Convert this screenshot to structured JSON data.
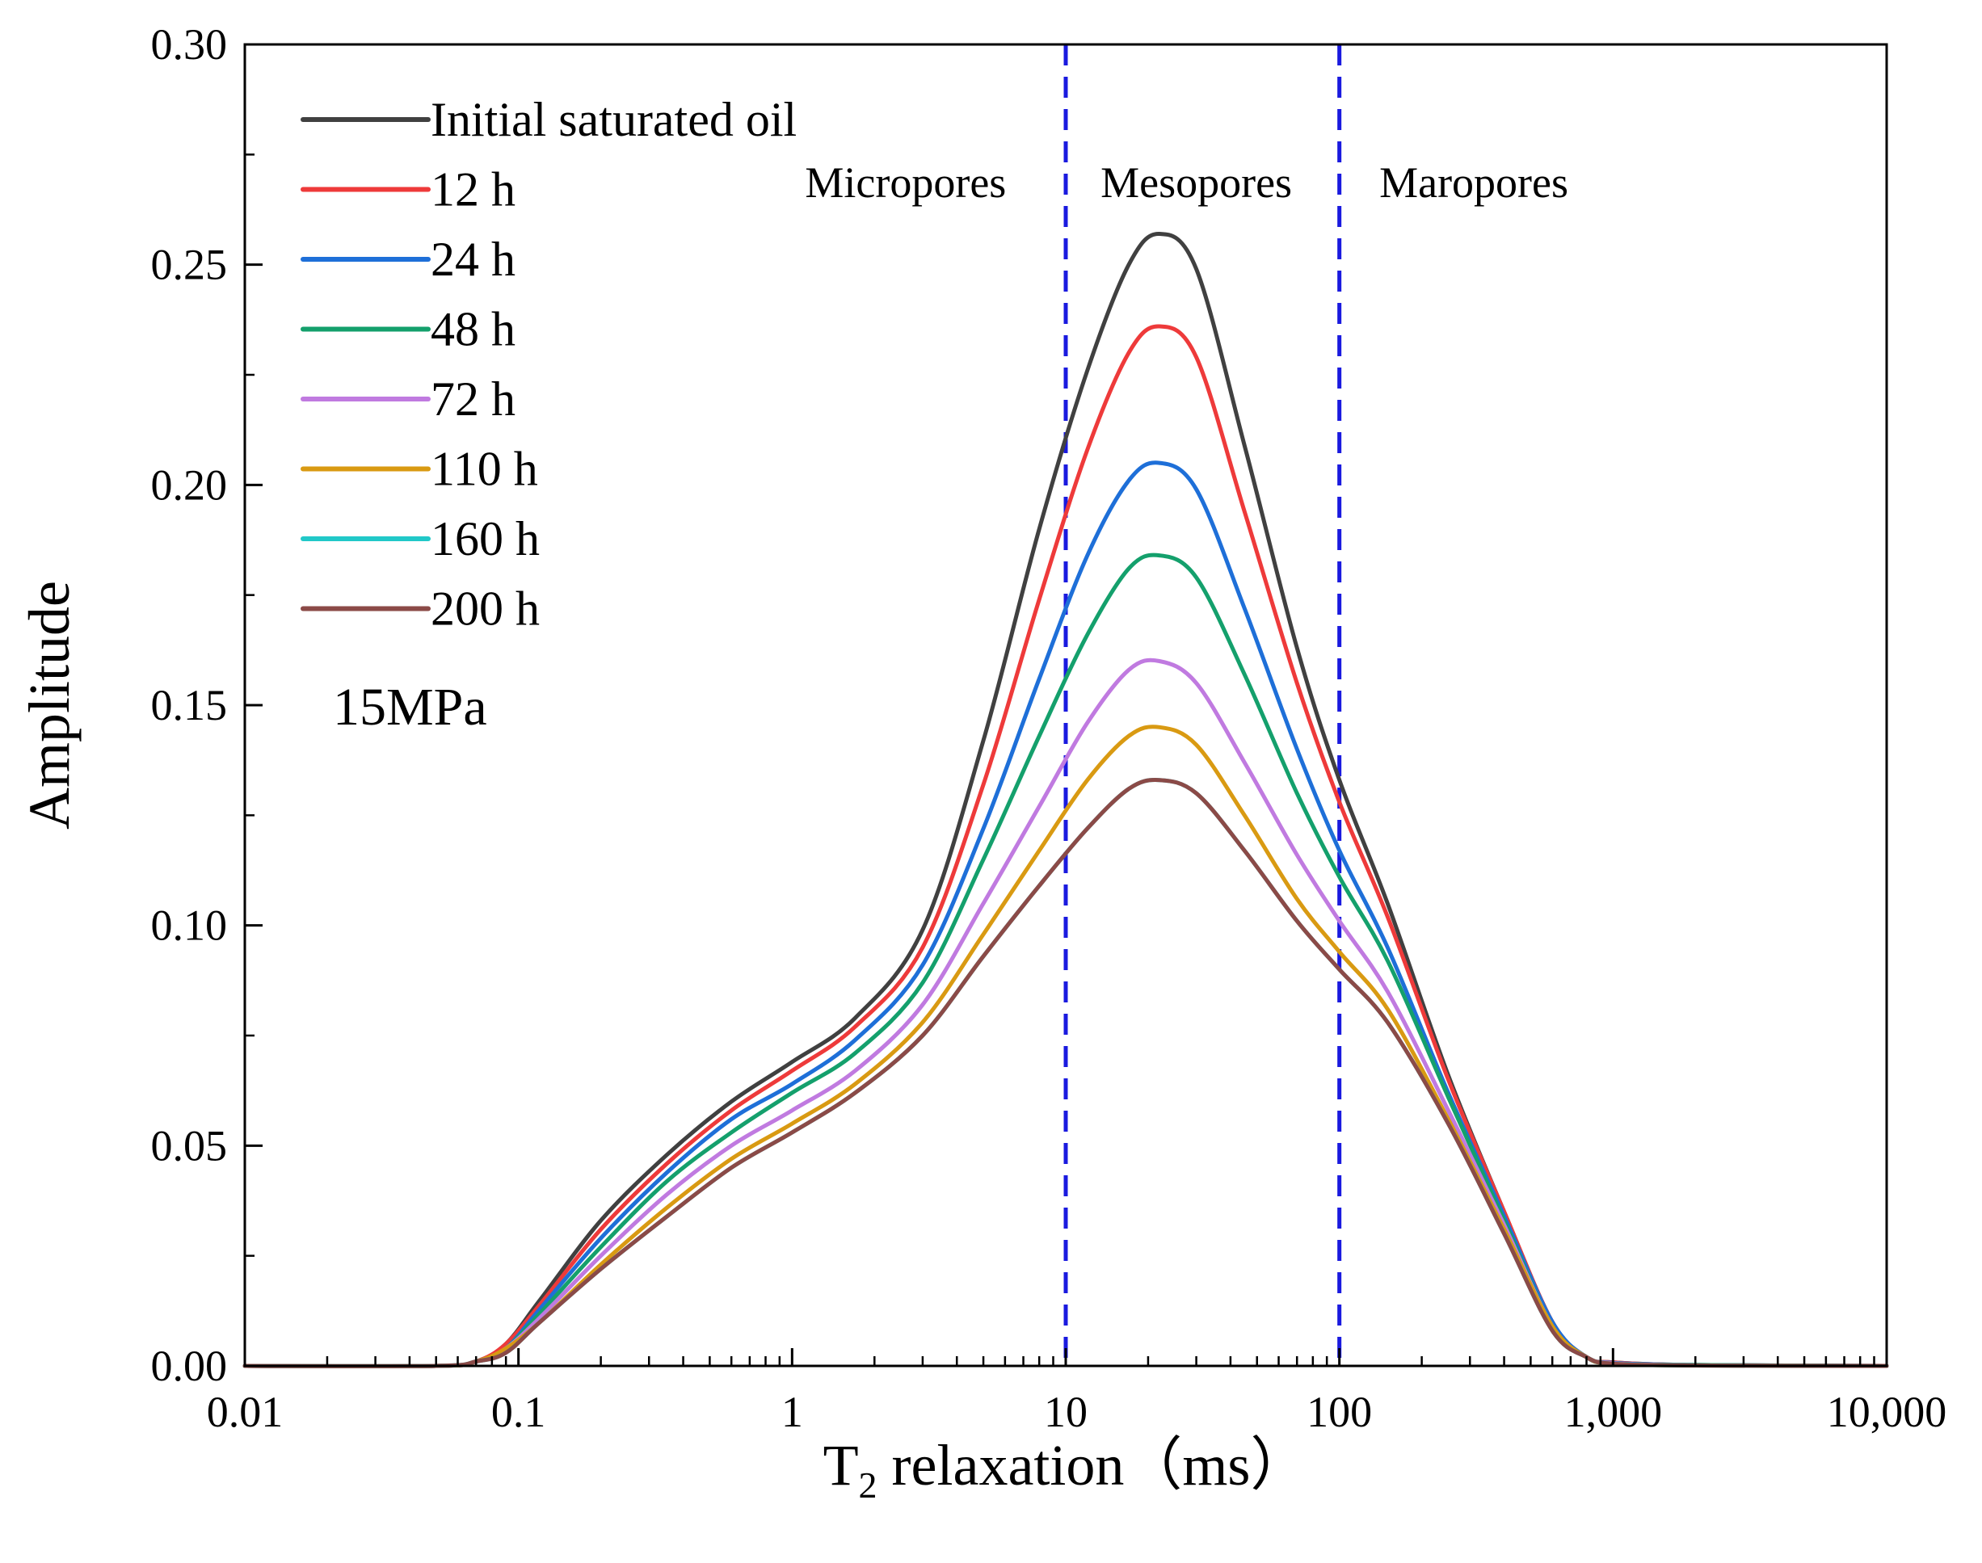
{
  "chart_data": {
    "type": "line",
    "x_scale": "log",
    "xlabel": {
      "main": "T",
      "sub": "2",
      "rest": " relaxation（ms）"
    },
    "ylabel": "Amplitude",
    "xlim": [
      0.01,
      10000
    ],
    "ylim": [
      0,
      0.3
    ],
    "x_ticks": [
      {
        "value": 0.01,
        "label": "0.01"
      },
      {
        "value": 0.1,
        "label": "0.1"
      },
      {
        "value": 1,
        "label": "1"
      },
      {
        "value": 10,
        "label": "10"
      },
      {
        "value": 100,
        "label": "100"
      },
      {
        "value": 1000,
        "label": "1,000"
      },
      {
        "value": 10000,
        "label": "10,000"
      }
    ],
    "y_ticks": [
      {
        "value": 0,
        "label": "0.00"
      },
      {
        "value": 0.05,
        "label": "0.05"
      },
      {
        "value": 0.1,
        "label": "0.10"
      },
      {
        "value": 0.15,
        "label": "0.15"
      },
      {
        "value": 0.2,
        "label": "0.20"
      },
      {
        "value": 0.25,
        "label": "0.25"
      },
      {
        "value": 0.3,
        "label": "0.30"
      }
    ],
    "annotation": "15MPa",
    "vlines": [
      {
        "x": 10,
        "color": "#1a1adf",
        "style": "dashed"
      },
      {
        "x": 100,
        "color": "#1a1adf",
        "style": "dashed"
      }
    ],
    "region_labels": [
      {
        "text": "Micropores",
        "x": 2.6
      },
      {
        "text": "Mesopores",
        "x": 30
      },
      {
        "text": "Maropores",
        "x": 310
      }
    ],
    "x": [
      0.01,
      0.05,
      0.07,
      0.09,
      0.12,
      0.2,
      0.35,
      0.6,
      1,
      1.7,
      3,
      5,
      8,
      12,
      17,
      22,
      30,
      45,
      70,
      100,
      150,
      250,
      400,
      600,
      800,
      1000,
      2000,
      10000
    ],
    "series": [
      {
        "name": "Initial saturated oil",
        "color": "#404040",
        "values": [
          0,
          0,
          0.001,
          0.005,
          0.015,
          0.033,
          0.048,
          0.06,
          0.069,
          0.079,
          0.099,
          0.142,
          0.19,
          0.226,
          0.25,
          0.257,
          0.249,
          0.209,
          0.163,
          0.133,
          0.105,
          0.066,
          0.035,
          0.01,
          0.002,
          0.0008,
          0.0002,
          0
        ]
      },
      {
        "name": "12 h",
        "color": "#ee3a3a",
        "values": [
          0,
          0,
          0.001,
          0.005,
          0.014,
          0.031,
          0.046,
          0.058,
          0.067,
          0.077,
          0.095,
          0.132,
          0.174,
          0.208,
          0.23,
          0.236,
          0.229,
          0.194,
          0.155,
          0.128,
          0.102,
          0.065,
          0.035,
          0.01,
          0.002,
          0.0008,
          0.0002,
          0
        ]
      },
      {
        "name": "24 h",
        "color": "#1e6fd8",
        "values": [
          0,
          0,
          0.001,
          0.004,
          0.013,
          0.029,
          0.044,
          0.056,
          0.064,
          0.074,
          0.091,
          0.122,
          0.156,
          0.184,
          0.201,
          0.205,
          0.199,
          0.172,
          0.14,
          0.117,
          0.095,
          0.062,
          0.034,
          0.01,
          0.002,
          0.0007,
          0.0002,
          0
        ]
      },
      {
        "name": "48 h",
        "color": "#14a06c",
        "values": [
          0,
          0,
          0.001,
          0.004,
          0.012,
          0.027,
          0.042,
          0.053,
          0.062,
          0.071,
          0.087,
          0.115,
          0.143,
          0.166,
          0.181,
          0.184,
          0.179,
          0.157,
          0.13,
          0.111,
          0.092,
          0.061,
          0.033,
          0.009,
          0.002,
          0.0006,
          0.0002,
          0
        ]
      },
      {
        "name": "72 h",
        "color": "#c07ae0",
        "values": [
          0,
          0,
          0.001,
          0.004,
          0.011,
          0.025,
          0.039,
          0.05,
          0.058,
          0.067,
          0.082,
          0.105,
          0.127,
          0.146,
          0.158,
          0.16,
          0.155,
          0.137,
          0.116,
          0.101,
          0.085,
          0.058,
          0.032,
          0.009,
          0.002,
          0.0006,
          0.0001,
          0
        ]
      },
      {
        "name": "110 h",
        "color": "#d99a12",
        "values": [
          0,
          0,
          0.001,
          0.004,
          0.01,
          0.023,
          0.036,
          0.047,
          0.055,
          0.064,
          0.078,
          0.098,
          0.117,
          0.133,
          0.143,
          0.145,
          0.141,
          0.125,
          0.106,
          0.094,
          0.081,
          0.056,
          0.031,
          0.009,
          0.002,
          0.0005,
          0.0001,
          0
        ]
      },
      {
        "name": "160 h",
        "color": "#21c8c8",
        "values": [
          0,
          0,
          0.001,
          0.003,
          0.01,
          0.022,
          0.034,
          0.045,
          0.053,
          0.062,
          0.075,
          0.093,
          0.109,
          0.122,
          0.131,
          0.133,
          0.13,
          0.117,
          0.101,
          0.09,
          0.078,
          0.055,
          0.03,
          0.008,
          0.002,
          0.0005,
          0.0001,
          0
        ]
      },
      {
        "name": "200 h",
        "color": "#8b4a47",
        "values": [
          0,
          0,
          0.001,
          0.003,
          0.01,
          0.022,
          0.034,
          0.045,
          0.053,
          0.062,
          0.075,
          0.093,
          0.109,
          0.122,
          0.131,
          0.133,
          0.13,
          0.117,
          0.101,
          0.09,
          0.078,
          0.055,
          0.03,
          0.008,
          0.002,
          0.0005,
          0.0001,
          0
        ]
      }
    ]
  }
}
